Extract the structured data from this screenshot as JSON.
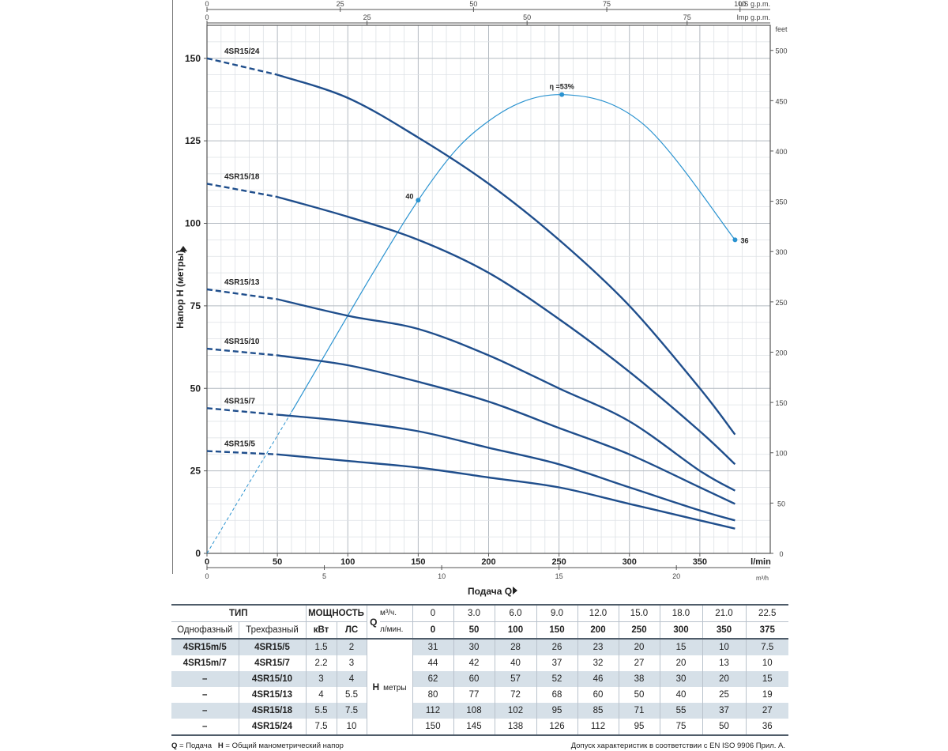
{
  "chart_data": {
    "type": "line",
    "x_unit_label": "l/min",
    "x_unit_label_m3h": "m³/h",
    "xlabel": "Подача Q",
    "ylabel": "Напор H (метры)",
    "y_right_unit_label": "feet",
    "xlim": [
      0,
      400
    ],
    "ylim": [
      0,
      160
    ],
    "x_ticks": [
      0,
      50,
      100,
      150,
      200,
      250,
      300,
      350
    ],
    "y_ticks": [
      0,
      25,
      50,
      75,
      100,
      125,
      150
    ],
    "feet_ticks": [
      0,
      50,
      100,
      150,
      200,
      250,
      300,
      350,
      400,
      450,
      500
    ],
    "m3h_ticks": [
      0,
      5,
      10,
      15,
      20
    ],
    "us_gpm_label": "US g.p.m.",
    "us_gpm_ticks": [
      0,
      25,
      50,
      75,
      100
    ],
    "imp_gpm_label": "Imp g.p.m.",
    "imp_gpm_ticks": [
      0,
      25,
      50,
      75
    ],
    "grid": true,
    "x": [
      0,
      50,
      100,
      150,
      200,
      250,
      300,
      350,
      375
    ],
    "series": [
      {
        "name": "4SR15/5",
        "values": [
          31,
          30,
          28,
          26,
          23,
          20,
          15,
          10,
          7.5
        ]
      },
      {
        "name": "4SR15/7",
        "values": [
          44,
          42,
          40,
          37,
          32,
          27,
          20,
          13,
          10
        ]
      },
      {
        "name": "4SR15/10",
        "values": [
          62,
          60,
          57,
          52,
          46,
          38,
          30,
          20,
          15
        ]
      },
      {
        "name": "4SR15/13",
        "values": [
          80,
          77,
          72,
          68,
          60,
          50,
          40,
          25,
          19
        ]
      },
      {
        "name": "4SR15/18",
        "values": [
          112,
          108,
          102,
          95,
          85,
          71,
          55,
          37,
          27
        ]
      },
      {
        "name": "4SR15/24",
        "values": [
          150,
          145,
          138,
          126,
          112,
          95,
          75,
          50,
          36
        ]
      }
    ],
    "efficiency": {
      "points": [
        {
          "x": 150,
          "y": 107,
          "label": "40"
        },
        {
          "x": 252,
          "y": 139,
          "label": "η =53%"
        },
        {
          "x": 375,
          "y": 95,
          "label": "36"
        }
      ]
    }
  },
  "table": {
    "h_type": "ТИП",
    "h_power": "МОЩНОСТЬ",
    "h_q": "Q",
    "q_unit_m3": "м³/ч.",
    "q_unit_lmin": "л/мин.",
    "h_single": "Однофазный",
    "h_three": "Трехфазный",
    "h_kw": "кВт",
    "h_hp": "ЛС",
    "q_m3h": [
      "0",
      "3.0",
      "6.0",
      "9.0",
      "12.0",
      "15.0",
      "18.0",
      "21.0",
      "22.5"
    ],
    "q_lmin": [
      "0",
      "50",
      "100",
      "150",
      "200",
      "250",
      "300",
      "350",
      "375"
    ],
    "h_label": "H",
    "h_unit": "метры",
    "rows": [
      {
        "single": "4SR15m/5",
        "three": "4SR15/5",
        "kw": "1.5",
        "hp": "2",
        "h": [
          "31",
          "30",
          "28",
          "26",
          "23",
          "20",
          "15",
          "10",
          "7.5"
        ]
      },
      {
        "single": "4SR15m/7",
        "three": "4SR15/7",
        "kw": "2.2",
        "hp": "3",
        "h": [
          "44",
          "42",
          "40",
          "37",
          "32",
          "27",
          "20",
          "13",
          "10"
        ]
      },
      {
        "single": "–",
        "three": "4SR15/10",
        "kw": "3",
        "hp": "4",
        "h": [
          "62",
          "60",
          "57",
          "52",
          "46",
          "38",
          "30",
          "20",
          "15"
        ]
      },
      {
        "single": "–",
        "three": "4SR15/13",
        "kw": "4",
        "hp": "5.5",
        "h": [
          "80",
          "77",
          "72",
          "68",
          "60",
          "50",
          "40",
          "25",
          "19"
        ]
      },
      {
        "single": "–",
        "three": "4SR15/18",
        "kw": "5.5",
        "hp": "7.5",
        "h": [
          "112",
          "108",
          "102",
          "95",
          "85",
          "71",
          "55",
          "37",
          "27"
        ]
      },
      {
        "single": "–",
        "three": "4SR15/24",
        "kw": "7.5",
        "hp": "10",
        "h": [
          "150",
          "145",
          "138",
          "126",
          "112",
          "95",
          "75",
          "50",
          "36"
        ]
      }
    ]
  },
  "footer": {
    "q_key": "Q",
    "q_desc": " = Подача",
    "h_key": "H",
    "h_desc": " = Общий манометрический напор",
    "tolerance": "Допуск характеристик в соответствии с EN ISO 9906 Прил. A."
  },
  "colors": {
    "curve": "#1f4e8c",
    "efficiency": "#2b93d0",
    "grid": "#c8cdd2",
    "table_shade": "#d6e0e8"
  }
}
